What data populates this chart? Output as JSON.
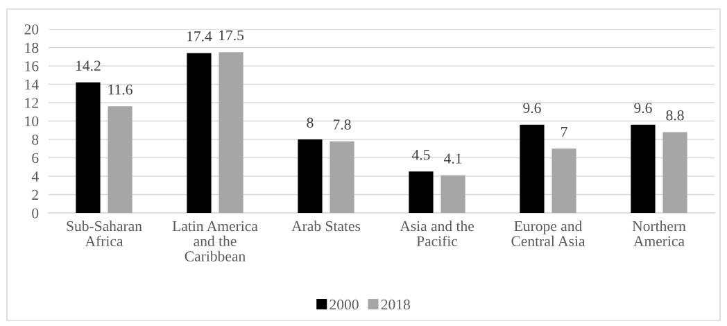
{
  "chart_data": {
    "type": "bar",
    "categories": [
      "Sub-Saharan\nAfrica",
      "Latin America\nand the\nCaribbean",
      "Arab States",
      "Asia and the\nPacific",
      "Europe and\nCentral Asia",
      "Northern\nAmerica"
    ],
    "series": [
      {
        "name": "2000",
        "color": "#000000",
        "values": [
          14.2,
          17.4,
          8,
          4.5,
          9.6,
          9.6
        ]
      },
      {
        "name": "2018",
        "color": "#a6a6a6",
        "values": [
          11.6,
          17.5,
          7.8,
          4.1,
          7,
          8.8
        ]
      }
    ],
    "ylim": [
      0,
      20
    ],
    "yticks": [
      0,
      2,
      4,
      6,
      8,
      10,
      12,
      14,
      16,
      18,
      20
    ],
    "grid": "y",
    "legend": "bottom",
    "data_labels": true
  }
}
